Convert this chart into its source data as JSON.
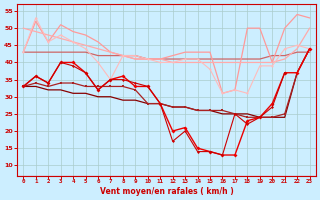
{
  "x": [
    0,
    1,
    2,
    3,
    4,
    5,
    6,
    7,
    8,
    9,
    10,
    11,
    12,
    13,
    14,
    15,
    16,
    17,
    18,
    19,
    20,
    21,
    22,
    23
  ],
  "bg_color": "#cceeff",
  "grid_color": "#aacccc",
  "xlabel": "Vent moyen/en rafales ( km/h )",
  "xlabel_color": "#cc0000",
  "tick_color": "#cc0000",
  "ylim": [
    7,
    57
  ],
  "yticks": [
    10,
    15,
    20,
    25,
    30,
    35,
    40,
    45,
    50,
    55
  ],
  "lines": [
    {
      "y": [
        43,
        43,
        43,
        43,
        43,
        43,
        42,
        42,
        42,
        42,
        41,
        41,
        41,
        41,
        41,
        41,
        41,
        41,
        41,
        41,
        42,
        42,
        43,
        43
      ],
      "color": "#cc6666",
      "lw": 0.9,
      "marker": null,
      "ms": 0
    },
    {
      "y": [
        43,
        52,
        46,
        51,
        49,
        48,
        46,
        43,
        42,
        41,
        41,
        41,
        42,
        43,
        43,
        43,
        31,
        32,
        50,
        50,
        40,
        50,
        54,
        53
      ],
      "color": "#ff9999",
      "lw": 0.9,
      "marker": null,
      "ms": 0
    },
    {
      "y": [
        50,
        49,
        48,
        47,
        46,
        45,
        44,
        43,
        42,
        41,
        41,
        41,
        40,
        40,
        40,
        40,
        40,
        40,
        40,
        40,
        40,
        41,
        44,
        50
      ],
      "color": "#ffaaaa",
      "lw": 0.9,
      "marker": null,
      "ms": 0
    },
    {
      "y": [
        43,
        53,
        46,
        48,
        46,
        44,
        40,
        35,
        42,
        42,
        41,
        40,
        40,
        41,
        41,
        38,
        31,
        32,
        31,
        39,
        39,
        44,
        45,
        44
      ],
      "color": "#ffbbbb",
      "lw": 0.8,
      "marker": "o",
      "ms": 1.5
    },
    {
      "y": [
        33,
        33,
        32,
        32,
        31,
        31,
        30,
        30,
        29,
        29,
        28,
        28,
        27,
        27,
        26,
        26,
        25,
        25,
        25,
        24,
        24,
        24,
        37,
        44
      ],
      "color": "#880000",
      "lw": 0.9,
      "marker": null,
      "ms": 0
    },
    {
      "y": [
        33,
        34,
        33,
        34,
        34,
        33,
        33,
        33,
        33,
        32,
        28,
        28,
        27,
        27,
        26,
        26,
        26,
        25,
        24,
        24,
        24,
        25,
        37,
        44
      ],
      "color": "#aa2222",
      "lw": 0.9,
      "marker": "s",
      "ms": 1.5
    },
    {
      "y": [
        33,
        36,
        34,
        40,
        40,
        37,
        32,
        35,
        36,
        33,
        33,
        28,
        20,
        21,
        15,
        14,
        13,
        13,
        23,
        24,
        28,
        37,
        37,
        44
      ],
      "color": "#ee0000",
      "lw": 1.0,
      "marker": "D",
      "ms": 2.0
    },
    {
      "y": [
        33,
        36,
        34,
        40,
        39,
        37,
        32,
        35,
        35,
        34,
        33,
        28,
        17,
        20,
        14,
        14,
        13,
        25,
        22,
        24,
        27,
        37,
        null,
        null
      ],
      "color": "#cc0000",
      "lw": 0.8,
      "marker": "D",
      "ms": 1.5
    }
  ]
}
